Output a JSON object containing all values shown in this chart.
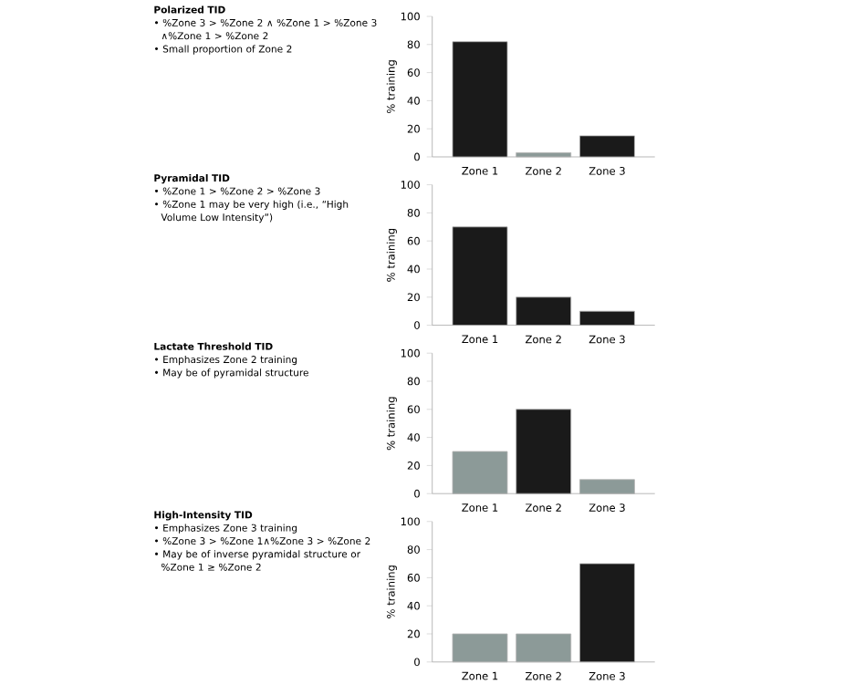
{
  "chart_data": [
    {
      "type": "other",
      "title": "Polarized TID",
      "annotations": [
        "• %Zone 3 > %Zone 2 ∧ %Zone 1 > %Zone 3 ∧%Zone 1 > %Zone 2",
        "• Small proportion of Zone 2"
      ]
    },
    {
      "type": "bar",
      "ylabel": "% training",
      "categories": [
        "Zone 1",
        "Zone 2",
        "Zone 3"
      ],
      "values": [
        82,
        3,
        15
      ],
      "colors": [
        "#1a1a1a",
        "#8c9a98",
        "#1a1a1a"
      ],
      "ylim": [
        0,
        100
      ],
      "yticks": [
        0,
        20,
        40,
        60,
        80,
        100
      ]
    },
    {
      "type": "other",
      "title": "Pyramidal TID",
      "annotations": [
        "• %Zone 1 > %Zone 2 > %Zone 3",
        "• %Zone 1 may be very high (i.e., “High Volume Low Intensity”)"
      ]
    },
    {
      "type": "bar",
      "ylabel": "% training",
      "categories": [
        "Zone 1",
        "Zone 2",
        "Zone 3"
      ],
      "values": [
        70,
        20,
        10
      ],
      "colors": [
        "#1a1a1a",
        "#1a1a1a",
        "#1a1a1a"
      ],
      "ylim": [
        0,
        100
      ],
      "yticks": [
        0,
        20,
        40,
        60,
        80,
        100
      ]
    },
    {
      "type": "other",
      "title": "Lactate Threshold TID",
      "annotations": [
        "• Emphasizes Zone 2 training",
        "• May be of pyramidal structure"
      ]
    },
    {
      "type": "bar",
      "ylabel": "% training",
      "categories": [
        "Zone 1",
        "Zone 2",
        "Zone 3"
      ],
      "values": [
        30,
        60,
        10
      ],
      "colors": [
        "#8c9a98",
        "#1a1a1a",
        "#8c9a98"
      ],
      "ylim": [
        0,
        100
      ],
      "yticks": [
        0,
        20,
        40,
        60,
        80,
        100
      ]
    },
    {
      "type": "other",
      "title": "High-Intensity TID",
      "annotations": [
        "• Emphasizes Zone 3 training",
        "• %Zone 3 > %Zone 1∧%Zone 3 > %Zone 2",
        "• May be of inverse pyramidal structure or %Zone 1 ≥ %Zone 2"
      ]
    },
    {
      "type": "bar",
      "ylabel": "% training",
      "categories": [
        "Zone 1",
        "Zone 2",
        "Zone 3"
      ],
      "values": [
        20,
        20,
        70
      ],
      "colors": [
        "#8c9a98",
        "#8c9a98",
        "#1a1a1a"
      ],
      "ylim": [
        0,
        100
      ],
      "yticks": [
        0,
        20,
        40,
        60,
        80,
        100
      ]
    }
  ]
}
